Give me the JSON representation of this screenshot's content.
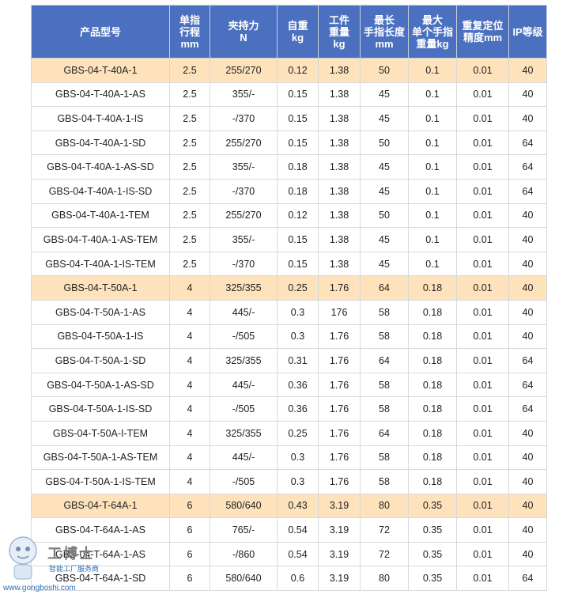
{
  "headers": [
    [
      "产品型号"
    ],
    [
      "单指",
      "行程",
      "mm"
    ],
    [
      "夹持力",
      "N"
    ],
    [
      "自重",
      "kg"
    ],
    [
      "工件",
      "重量",
      "kg"
    ],
    [
      "最长",
      "手指长度",
      "mm"
    ],
    [
      "最大",
      "单个手指",
      "重量kg"
    ],
    [
      "重复定位",
      "精度mm"
    ],
    [
      "IP等级"
    ]
  ],
  "rows": [
    {
      "highlight": true,
      "cells": [
        "GBS-04-T-40A-1",
        "2.5",
        "255/270",
        "0.12",
        "1.38",
        "50",
        "0.1",
        "0.01",
        "40"
      ]
    },
    {
      "highlight": false,
      "cells": [
        "GBS-04-T-40A-1-AS",
        "2.5",
        "355/-",
        "0.15",
        "1.38",
        "45",
        "0.1",
        "0.01",
        "40"
      ]
    },
    {
      "highlight": false,
      "cells": [
        "GBS-04-T-40A-1-IS",
        "2.5",
        "-/370",
        "0.15",
        "1.38",
        "45",
        "0.1",
        "0.01",
        "40"
      ]
    },
    {
      "highlight": false,
      "cells": [
        "GBS-04-T-40A-1-SD",
        "2.5",
        "255/270",
        "0.15",
        "1.38",
        "50",
        "0.1",
        "0.01",
        "64"
      ]
    },
    {
      "highlight": false,
      "cells": [
        "GBS-04-T-40A-1-AS-SD",
        "2.5",
        "355/-",
        "0.18",
        "1.38",
        "45",
        "0.1",
        "0.01",
        "64"
      ]
    },
    {
      "highlight": false,
      "cells": [
        "GBS-04-T-40A-1-IS-SD",
        "2.5",
        "-/370",
        "0.18",
        "1.38",
        "45",
        "0.1",
        "0.01",
        "64"
      ]
    },
    {
      "highlight": false,
      "cells": [
        "GBS-04-T-40A-1-TEM",
        "2.5",
        "255/270",
        "0.12",
        "1.38",
        "50",
        "0.1",
        "0.01",
        "40"
      ]
    },
    {
      "highlight": false,
      "cells": [
        "GBS-04-T-40A-1-AS-TEM",
        "2.5",
        "355/-",
        "0.15",
        "1.38",
        "45",
        "0.1",
        "0.01",
        "40"
      ]
    },
    {
      "highlight": false,
      "cells": [
        "GBS-04-T-40A-1-IS-TEM",
        "2.5",
        "-/370",
        "0.15",
        "1.38",
        "45",
        "0.1",
        "0.01",
        "40"
      ]
    },
    {
      "highlight": true,
      "cells": [
        "GBS-04-T-50A-1",
        "4",
        "325/355",
        "0.25",
        "1.76",
        "64",
        "0.18",
        "0.01",
        "40"
      ]
    },
    {
      "highlight": false,
      "cells": [
        "GBS-04-T-50A-1-AS",
        "4",
        "445/-",
        "0.3",
        "176",
        "58",
        "0.18",
        "0.01",
        "40"
      ]
    },
    {
      "highlight": false,
      "cells": [
        "GBS-04-T-50A-1-IS",
        "4",
        "-/505",
        "0.3",
        "1.76",
        "58",
        "0.18",
        "0.01",
        "40"
      ]
    },
    {
      "highlight": false,
      "cells": [
        "GBS-04-T-50A-1-SD",
        "4",
        "325/355",
        "0.31",
        "1.76",
        "64",
        "0.18",
        "0.01",
        "64"
      ]
    },
    {
      "highlight": false,
      "cells": [
        "GBS-04-T-50A-1-AS-SD",
        "4",
        "445/-",
        "0.36",
        "1.76",
        "58",
        "0.18",
        "0.01",
        "64"
      ]
    },
    {
      "highlight": false,
      "cells": [
        "GBS-04-T-50A-1-IS-SD",
        "4",
        "-/505",
        "0.36",
        "1.76",
        "58",
        "0.18",
        "0.01",
        "64"
      ]
    },
    {
      "highlight": false,
      "cells": [
        "GBS-04-T-50A-I-TEM",
        "4",
        "325/355",
        "0.25",
        "1.76",
        "64",
        "0.18",
        "0.01",
        "40"
      ]
    },
    {
      "highlight": false,
      "cells": [
        "GBS-04-T-50A-1-AS-TEM",
        "4",
        "445/-",
        "0.3",
        "1.76",
        "58",
        "0.18",
        "0.01",
        "40"
      ]
    },
    {
      "highlight": false,
      "cells": [
        "GBS-04-T-50A-1-IS-TEM",
        "4",
        "-/505",
        "0.3",
        "1.76",
        "58",
        "0.18",
        "0.01",
        "40"
      ]
    },
    {
      "highlight": true,
      "cells": [
        "GBS-04-T-64A-1",
        "6",
        "580/640",
        "0.43",
        "3.19",
        "80",
        "0.35",
        "0.01",
        "40"
      ]
    },
    {
      "highlight": false,
      "cells": [
        "GBS-04-T-64A-1-AS",
        "6",
        "765/-",
        "0.54",
        "3.19",
        "72",
        "0.35",
        "0.01",
        "40"
      ]
    },
    {
      "highlight": false,
      "cells": [
        "GBS-04-T-64A-1-AS",
        "6",
        "-/860",
        "0.54",
        "3.19",
        "72",
        "0.35",
        "0.01",
        "40"
      ]
    },
    {
      "highlight": false,
      "cells": [
        "GBS-04-T-64A-1-SD",
        "6",
        "580/640",
        "0.6",
        "3.19",
        "80",
        "0.35",
        "0.01",
        "64"
      ]
    }
  ],
  "colors": {
    "header_bg": "#4b70bf",
    "highlight_row": "#fde2bc"
  },
  "watermark": {
    "brand": "工博士",
    "tagline": "智能工厂服务商",
    "url": "www.gongboshi.com"
  }
}
